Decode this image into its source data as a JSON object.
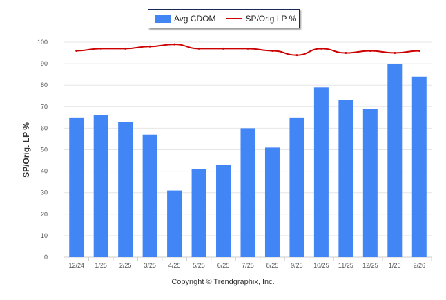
{
  "chart_data": {
    "type": "bar",
    "title": "",
    "xlabel": "",
    "ylabel": "SP/Orig. LP %",
    "ylim": [
      0,
      100
    ],
    "yticks": [
      0,
      10,
      20,
      30,
      40,
      50,
      60,
      70,
      80,
      90,
      100
    ],
    "grid": true,
    "legend_position": "top-center",
    "categories": [
      "12/24",
      "1/25",
      "2/25",
      "3/25",
      "4/25",
      "5/25",
      "6/25",
      "7/25",
      "8/25",
      "9/25",
      "10/25",
      "11/25",
      "12/25",
      "1/26",
      "2/26"
    ],
    "series": [
      {
        "name": "Avg CDOM",
        "type": "bar",
        "color": "#4285f4",
        "values": [
          65,
          66,
          63,
          57,
          31,
          41,
          43,
          60,
          51,
          65,
          79,
          73,
          69,
          90,
          84
        ]
      },
      {
        "name": "SP/Orig LP %",
        "type": "line",
        "color": "#cc0000",
        "values": [
          96,
          97,
          97,
          98,
          99,
          97,
          97,
          97,
          96,
          94,
          97,
          95,
          96,
          95,
          96
        ]
      }
    ]
  },
  "footer": {
    "copyright": "Copyright © Trendgraphix, Inc."
  }
}
